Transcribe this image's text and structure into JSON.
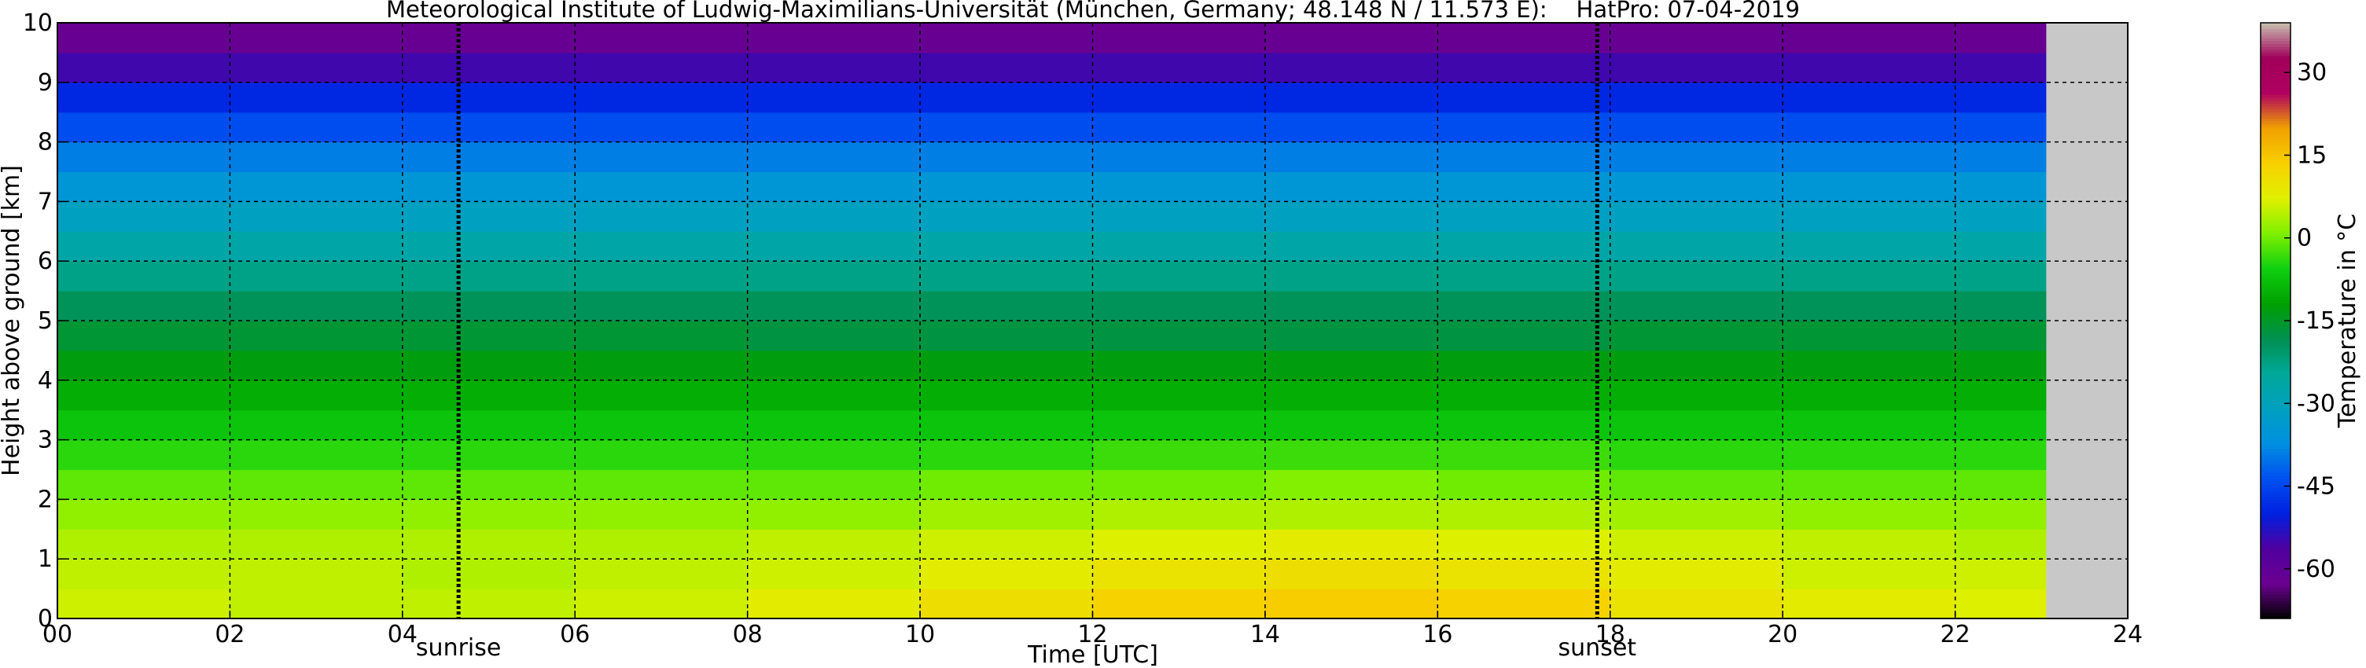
{
  "chart_data": {
    "type": "heatmap",
    "title": "Meteorological Institute of Ludwig-Maximilians-Universität (München, Germany; 48.148 N / 11.573 E):    HatPro: 07-04-2019",
    "xlabel": "Time [UTC]",
    "ylabel": "Height above ground [km]",
    "colorbar_label": "Temperature in °C",
    "xlim": [
      0,
      24
    ],
    "ylim": [
      0,
      10
    ],
    "xticks": [
      {
        "value": 0,
        "label": "00"
      },
      {
        "value": 2,
        "label": "02"
      },
      {
        "value": 4,
        "label": "04"
      },
      {
        "value": 6,
        "label": "06"
      },
      {
        "value": 8,
        "label": "08"
      },
      10,
      12,
      14,
      16,
      18,
      20,
      22,
      24
    ],
    "yticks": [
      0,
      1,
      2,
      3,
      4,
      5,
      6,
      7,
      8,
      9,
      10
    ],
    "grid": true,
    "clim": [
      -69,
      39
    ],
    "cticks": [
      -60,
      -45,
      -30,
      -15,
      0,
      15,
      30
    ],
    "colormap": [
      "#000000",
      "#6a0090",
      "#5000a0",
      "#0020e0",
      "#0050f0",
      "#0090e0",
      "#00a0c0",
      "#00a898",
      "#009050",
      "#00a000",
      "#10d010",
      "#80f000",
      "#e0f000",
      "#f8d000",
      "#f0a000",
      "#b00060",
      "#a0005a",
      "#c8c0b0"
    ],
    "x_bins": [
      0,
      2,
      4,
      6,
      8,
      10,
      12,
      14,
      16,
      18,
      20,
      22,
      23.05
    ],
    "y_bins": [
      0,
      0.5,
      1,
      1.5,
      2,
      2.5,
      3,
      3.5,
      4,
      4.5,
      5,
      5.5,
      6,
      6.5,
      7,
      7.5,
      8,
      8.5,
      9,
      9.5,
      10
    ],
    "values": [
      [
        6,
        5,
        5,
        6,
        8,
        11,
        13,
        14,
        13,
        10,
        8,
        7
      ],
      [
        5,
        5,
        4,
        5,
        6,
        8,
        10,
        11,
        10,
        8,
        6,
        6
      ],
      [
        4,
        4,
        4,
        4,
        5,
        6,
        7,
        8,
        7,
        6,
        5,
        4
      ],
      [
        2,
        2,
        2,
        2,
        2,
        3,
        4,
        4,
        4,
        3,
        2,
        2
      ],
      [
        -1,
        -1,
        -1,
        -1,
        -1,
        0,
        0,
        1,
        0,
        -1,
        -1,
        -1
      ],
      [
        -4,
        -4,
        -4,
        -4,
        -4,
        -4,
        -3,
        -3,
        -3,
        -4,
        -4,
        -4
      ],
      [
        -7,
        -7,
        -7,
        -7,
        -7,
        -7,
        -7,
        -7,
        -7,
        -7,
        -7,
        -7
      ],
      [
        -10,
        -10,
        -10,
        -10,
        -10,
        -10,
        -10,
        -10,
        -10,
        -10,
        -10,
        -10
      ],
      [
        -13,
        -13,
        -13,
        -13,
        -13,
        -13,
        -13,
        -13,
        -13,
        -13,
        -13,
        -13
      ],
      [
        -16,
        -16,
        -16,
        -16,
        -17,
        -17,
        -17,
        -17,
        -17,
        -16,
        -16,
        -16
      ],
      [
        -19,
        -19,
        -19,
        -19,
        -19,
        -19,
        -19,
        -19,
        -19,
        -19,
        -19,
        -19
      ],
      [
        -23,
        -23,
        -23,
        -23,
        -23,
        -23,
        -23,
        -23,
        -23,
        -23,
        -23,
        -23
      ],
      [
        -27,
        -27,
        -27,
        -27,
        -27,
        -27,
        -27,
        -27,
        -27,
        -27,
        -27,
        -27
      ],
      [
        -31,
        -31,
        -31,
        -31,
        -31,
        -31,
        -31,
        -31,
        -31,
        -31,
        -31,
        -31
      ],
      [
        -35,
        -35,
        -35,
        -35,
        -35,
        -35,
        -35,
        -35,
        -35,
        -35,
        -35,
        -35
      ],
      [
        -39,
        -39,
        -39,
        -39,
        -39,
        -39,
        -39,
        -39,
        -39,
        -39,
        -39,
        -39
      ],
      [
        -44,
        -44,
        -44,
        -44,
        -44,
        -44,
        -44,
        -44,
        -44,
        -44,
        -44,
        -44
      ],
      [
        -49,
        -49,
        -49,
        -49,
        -49,
        -49,
        -49,
        -49,
        -49,
        -49,
        -49,
        -49
      ],
      [
        -55,
        -55,
        -55,
        -55,
        -55,
        -55,
        -55,
        -55,
        -55,
        -55,
        -55,
        -55
      ],
      [
        -62,
        -62,
        -62,
        -62,
        -62,
        -62,
        -62,
        -62,
        -62,
        -62,
        -62,
        -62
      ]
    ],
    "annotations": [
      {
        "text": "sunrise",
        "x": 4.65
      },
      {
        "text": "sunset",
        "x": 17.85
      }
    ]
  }
}
